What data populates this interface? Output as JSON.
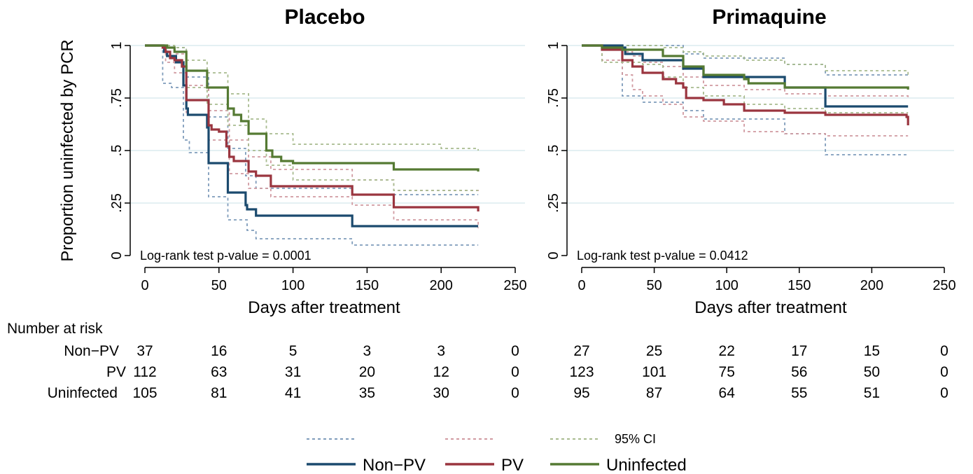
{
  "colors": {
    "non_pv": "#1b4a6e",
    "pv": "#9a353f",
    "uninfected": "#557a33",
    "non_pv_ci": "#7f9cbb",
    "pv_ci": "#d19aa1",
    "uninfected_ci": "#a8bb8f",
    "grid": "#dcecef"
  },
  "figure": {
    "y_axis_label": "Proportion uninfected by PCR",
    "risk_table_title": "Number at risk",
    "risk_labels": [
      "Non−PV",
      "PV",
      "Uninfected"
    ],
    "legend": {
      "ci_label": "95% CI",
      "series_labels": [
        "Non−PV",
        "PV",
        "Uninfected"
      ]
    }
  },
  "chart_data": [
    {
      "type": "line",
      "title": "Placebo",
      "xlabel": "Days after treatment",
      "ylabel": "Proportion uninfected by PCR",
      "xlim": [
        0,
        250
      ],
      "ylim": [
        0,
        1
      ],
      "x_ticks": [
        "0",
        "50",
        "100",
        "150",
        "200",
        "250"
      ],
      "y_ticks": [
        "0",
        ".25",
        ".5",
        ".75",
        "1"
      ],
      "grid": true,
      "annotation": "Log-rank test p-value = 0.0001",
      "risk_times": [
        0,
        50,
        100,
        150,
        200,
        250
      ],
      "risk_table": {
        "Non-PV": [
          "37",
          "16",
          "5",
          "3",
          "3",
          "0"
        ],
        "PV": [
          "112",
          "63",
          "31",
          "20",
          "12",
          "0"
        ],
        "Uninfected": [
          "105",
          "81",
          "41",
          "35",
          "30",
          "0"
        ]
      },
      "series": [
        {
          "name": "Non−PV",
          "key": "non_pv",
          "ci": false,
          "x": [
            0,
            13,
            15,
            18,
            21,
            26,
            28,
            29,
            30,
            42,
            43,
            55,
            56,
            67,
            68,
            69,
            70,
            75,
            140,
            225
          ],
          "y": [
            1,
            0.97,
            0.95,
            0.95,
            0.92,
            0.81,
            0.7,
            0.67,
            0.67,
            0.61,
            0.44,
            0.44,
            0.3,
            0.3,
            0.24,
            0.22,
            0.22,
            0.19,
            0.14,
            0.14
          ]
        },
        {
          "name": "95% CI",
          "key": "non_pv_ci",
          "ci": true,
          "x": [
            0,
            12,
            18,
            26,
            30,
            43,
            56,
            69,
            75,
            140,
            225
          ],
          "y": [
            1,
            0.82,
            0.8,
            0.55,
            0.49,
            0.28,
            0.17,
            0.12,
            0.08,
            0.05,
            0.05
          ]
        },
        {
          "name": "95% CI",
          "key": "non_pv_ci",
          "ci": true,
          "x": [
            0,
            13,
            18,
            28,
            43,
            56,
            68,
            75,
            140,
            225
          ],
          "y": [
            1,
            1,
            0.99,
            0.85,
            0.66,
            0.51,
            0.38,
            0.32,
            0.29,
            0.29
          ]
        },
        {
          "name": "PV",
          "key": "pv",
          "ci": false,
          "x": [
            0,
            12,
            14,
            17,
            20,
            25,
            28,
            42,
            43,
            45,
            50,
            55,
            57,
            60,
            70,
            75,
            85,
            140,
            168,
            225
          ],
          "y": [
            1,
            0.99,
            0.97,
            0.94,
            0.93,
            0.9,
            0.74,
            0.74,
            0.62,
            0.6,
            0.59,
            0.52,
            0.47,
            0.45,
            0.4,
            0.38,
            0.33,
            0.29,
            0.23,
            0.21
          ]
        },
        {
          "name": "95% CI",
          "key": "pv_ci",
          "ci": true,
          "x": [
            0,
            14,
            20,
            28,
            43,
            57,
            70,
            85,
            140,
            168,
            225
          ],
          "y": [
            1,
            0.92,
            0.87,
            0.67,
            0.55,
            0.39,
            0.32,
            0.28,
            0.24,
            0.17,
            0.13
          ]
        },
        {
          "name": "95% CI",
          "key": "pv_ci",
          "ci": true,
          "x": [
            0,
            14,
            20,
            28,
            43,
            57,
            70,
            85,
            140,
            168,
            225
          ],
          "y": [
            1,
            0.99,
            0.96,
            0.81,
            0.69,
            0.55,
            0.47,
            0.41,
            0.36,
            0.31,
            0.3
          ]
        },
        {
          "name": "Uninfected",
          "key": "uninfected",
          "ci": false,
          "x": [
            0,
            15,
            20,
            28,
            42,
            56,
            60,
            65,
            70,
            82,
            86,
            92,
            100,
            168,
            225
          ],
          "y": [
            1,
            0.99,
            0.97,
            0.88,
            0.8,
            0.7,
            0.67,
            0.64,
            0.58,
            0.5,
            0.47,
            0.45,
            0.44,
            0.41,
            0.4
          ]
        },
        {
          "name": "95% CI",
          "key": "uninfected_ci",
          "ci": true,
          "x": [
            0,
            20,
            28,
            42,
            56,
            70,
            82,
            100,
            168,
            225
          ],
          "y": [
            1,
            0.93,
            0.8,
            0.72,
            0.62,
            0.5,
            0.43,
            0.36,
            0.31,
            0.31
          ]
        },
        {
          "name": "95% CI",
          "key": "uninfected_ci",
          "ci": true,
          "x": [
            0,
            20,
            28,
            42,
            56,
            70,
            82,
            100,
            200,
            225
          ],
          "y": [
            1,
            0.99,
            0.93,
            0.87,
            0.77,
            0.65,
            0.58,
            0.53,
            0.51,
            0.5
          ]
        }
      ]
    },
    {
      "type": "line",
      "title": "Primaquine",
      "xlabel": "Days after treatment",
      "ylabel": "",
      "xlim": [
        0,
        250
      ],
      "ylim": [
        0,
        1
      ],
      "x_ticks": [
        "0",
        "50",
        "100",
        "150",
        "200",
        "250"
      ],
      "y_ticks": [
        "0",
        ".25",
        ".5",
        ".75",
        "1"
      ],
      "grid": true,
      "annotation": "Log-rank test p-value = 0.0412",
      "risk_times": [
        0,
        50,
        100,
        150,
        200,
        250
      ],
      "risk_table": {
        "Non-PV": [
          "27",
          "25",
          "22",
          "17",
          "15",
          "0"
        ],
        "PV": [
          "123",
          "101",
          "75",
          "56",
          "50",
          "0"
        ],
        "Uninfected": [
          "95",
          "87",
          "64",
          "55",
          "51",
          "0"
        ]
      },
      "series": [
        {
          "name": "Non−PV",
          "key": "non_pv",
          "ci": false,
          "x": [
            0,
            28,
            30,
            42,
            56,
            70,
            84,
            112,
            140,
            168,
            225
          ],
          "y": [
            1,
            0.99,
            0.96,
            0.93,
            0.93,
            0.89,
            0.85,
            0.85,
            0.8,
            0.71,
            0.71
          ]
        },
        {
          "name": "95% CI",
          "key": "non_pv_ci",
          "ci": true,
          "x": [
            0,
            28,
            42,
            70,
            84,
            112,
            140,
            168,
            225
          ],
          "y": [
            1,
            0.76,
            0.73,
            0.69,
            0.65,
            0.65,
            0.58,
            0.48,
            0.48
          ]
        },
        {
          "name": "95% CI",
          "key": "non_pv_ci",
          "ci": true,
          "x": [
            0,
            28,
            70,
            84,
            140,
            168,
            225
          ],
          "y": [
            1,
            1,
            0.96,
            0.94,
            0.91,
            0.86,
            0.86
          ]
        },
        {
          "name": "PV",
          "key": "pv",
          "ci": false,
          "x": [
            0,
            14,
            28,
            35,
            42,
            56,
            65,
            70,
            72,
            84,
            98,
            112,
            140,
            168,
            224,
            225
          ],
          "y": [
            1,
            0.98,
            0.93,
            0.9,
            0.87,
            0.84,
            0.82,
            0.8,
            0.75,
            0.74,
            0.72,
            0.69,
            0.68,
            0.67,
            0.66,
            0.62
          ]
        },
        {
          "name": "95% CI",
          "key": "pv_ci",
          "ci": true,
          "x": [
            0,
            14,
            28,
            35,
            42,
            56,
            70,
            84,
            112,
            140,
            168,
            225
          ],
          "y": [
            1,
            0.93,
            0.86,
            0.79,
            0.76,
            0.72,
            0.66,
            0.64,
            0.59,
            0.58,
            0.57,
            0.57
          ]
        },
        {
          "name": "95% CI",
          "key": "pv_ci",
          "ci": true,
          "x": [
            0,
            14,
            28,
            35,
            42,
            56,
            70,
            84,
            112,
            140,
            168,
            225
          ],
          "y": [
            1,
            0.99,
            0.97,
            0.95,
            0.92,
            0.9,
            0.85,
            0.81,
            0.79,
            0.77,
            0.76,
            0.75
          ]
        },
        {
          "name": "Uninfected",
          "key": "uninfected",
          "ci": false,
          "x": [
            0,
            14,
            28,
            42,
            56,
            70,
            84,
            112,
            115,
            140,
            225
          ],
          "y": [
            1,
            0.99,
            0.98,
            0.98,
            0.95,
            0.9,
            0.86,
            0.84,
            0.82,
            0.8,
            0.79
          ]
        },
        {
          "name": "95% CI",
          "key": "uninfected_ci",
          "ci": true,
          "x": [
            0,
            14,
            42,
            56,
            70,
            84,
            112,
            140,
            168,
            225
          ],
          "y": [
            1,
            0.92,
            0.91,
            0.85,
            0.8,
            0.76,
            0.72,
            0.7,
            0.68,
            0.68
          ]
        },
        {
          "name": "95% CI",
          "key": "uninfected_ci",
          "ci": true,
          "x": [
            0,
            14,
            28,
            56,
            70,
            84,
            112,
            140,
            168,
            225
          ],
          "y": [
            1,
            1,
            1,
            0.99,
            0.97,
            0.95,
            0.93,
            0.91,
            0.88,
            0.85
          ]
        }
      ]
    }
  ]
}
